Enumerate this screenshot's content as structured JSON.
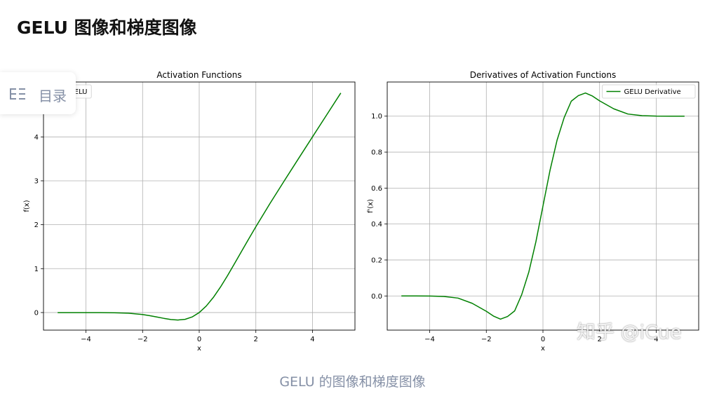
{
  "page": {
    "title": "GELU 图像和梯度图像",
    "caption": "GELU 的图像和梯度图像",
    "toc_label": "目录",
    "watermark": "知乎 @iCue"
  },
  "colors": {
    "line": "#008000",
    "grid": "#b0b0b0",
    "axis": "#000000",
    "caption": "#8590a6"
  },
  "chart_data": [
    {
      "type": "line",
      "title": "Activation Functions",
      "xlabel": "x",
      "ylabel": "f(x)",
      "xlim": [
        -5.5,
        5.5
      ],
      "ylim": [
        -0.4,
        5.25
      ],
      "xticks": [
        -4,
        -2,
        0,
        2,
        4
      ],
      "xtick_labels": [
        "−4",
        "−2",
        "0",
        "2",
        "4"
      ],
      "yticks": [
        0,
        1,
        2,
        3,
        4
      ],
      "ytick_labels": [
        "0",
        "1",
        "2",
        "3",
        "4"
      ],
      "grid": true,
      "legend": "upper-left",
      "series": [
        {
          "name": "GELU",
          "x": [
            -5,
            -4.5,
            -4,
            -3.5,
            -3,
            -2.5,
            -2,
            -1.75,
            -1.5,
            -1.25,
            -1,
            -0.75,
            -0.5,
            -0.25,
            0,
            0.25,
            0.5,
            0.75,
            1,
            1.25,
            1.5,
            1.75,
            2,
            2.5,
            3,
            3.5,
            4,
            4.5,
            5
          ],
          "values": [
            0,
            -2e-05,
            -0.0001,
            -0.0008,
            -0.004,
            -0.0155,
            -0.0454,
            -0.0702,
            -0.1004,
            -0.1318,
            -0.1588,
            -0.1699,
            -0.1543,
            -0.1003,
            0,
            0.1497,
            0.3457,
            0.5801,
            0.8412,
            1.1182,
            1.3996,
            1.6798,
            1.9546,
            2.4845,
            2.996,
            3.4992,
            3.9999,
            4.5,
            5
          ]
        }
      ]
    },
    {
      "type": "line",
      "title": "Derivatives of Activation Functions",
      "xlabel": "x",
      "ylabel": "f'(x)",
      "xlim": [
        -5.5,
        5.5
      ],
      "ylim": [
        -0.19,
        1.19
      ],
      "xticks": [
        -4,
        -2,
        0,
        2,
        4
      ],
      "xtick_labels": [
        "−4",
        "−2",
        "0",
        "2",
        "4"
      ],
      "yticks": [
        0,
        0.2,
        0.4,
        0.6,
        0.8,
        1.0
      ],
      "ytick_labels": [
        "0.0",
        "0.2",
        "0.4",
        "0.6",
        "0.8",
        "1.0"
      ],
      "grid": true,
      "legend": "upper-right",
      "series": [
        {
          "name": "GELU Derivative",
          "x": [
            -5,
            -4.5,
            -4,
            -3.5,
            -3,
            -2.5,
            -2,
            -1.75,
            -1.5,
            -1.25,
            -1,
            -0.75,
            -0.5,
            -0.25,
            0,
            0.25,
            0.5,
            0.75,
            1,
            1.25,
            1.5,
            1.75,
            2,
            2.5,
            3,
            3.5,
            4,
            4.5,
            5
          ],
          "values": [
            0,
            -0.0001,
            -0.0005,
            -0.003,
            -0.0119,
            -0.0409,
            -0.0852,
            -0.1116,
            -0.1289,
            -0.1141,
            -0.0833,
            0.0076,
            0.1325,
            0.3009,
            0.5,
            0.6991,
            0.8675,
            0.9924,
            1.0833,
            1.1141,
            1.1289,
            1.1116,
            1.0852,
            1.0409,
            1.0119,
            1.003,
            1.0005,
            1.0001,
            1
          ]
        }
      ]
    }
  ]
}
